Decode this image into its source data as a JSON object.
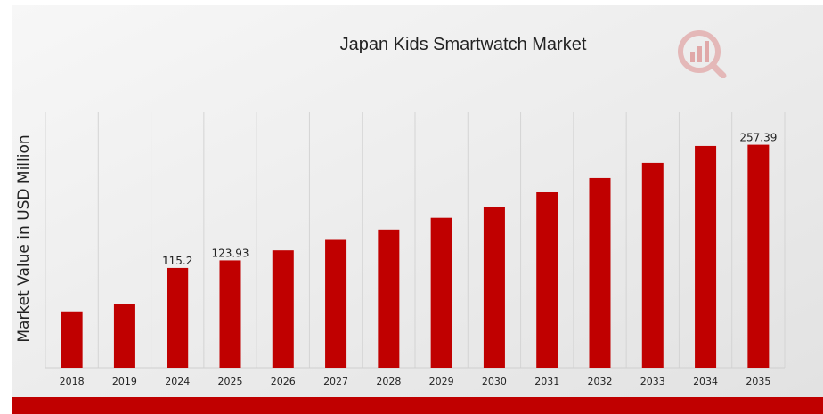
{
  "chart_data": {
    "type": "bar",
    "title": "Japan Kids Smartwatch Market",
    "ylabel": "Market Value in USD Million",
    "xlabel": "",
    "categories": [
      "2018",
      "2019",
      "2024",
      "2025",
      "2026",
      "2027",
      "2028",
      "2029",
      "2030",
      "2031",
      "2032",
      "2033",
      "2034",
      "2035"
    ],
    "values": [
      65,
      73,
      115.2,
      123.93,
      135.5,
      147.5,
      159.5,
      173,
      186,
      202.5,
      219,
      236.5,
      256,
      257.39
    ],
    "data_labels": {
      "2024": "115.2",
      "2025": "123.93",
      "2035": "257.39"
    },
    "ylim": [
      0,
      295
    ],
    "grid": "vertical",
    "bar_color": "#c00000",
    "legend": "none"
  },
  "logo": {
    "icon": "analytics-logo-icon"
  }
}
